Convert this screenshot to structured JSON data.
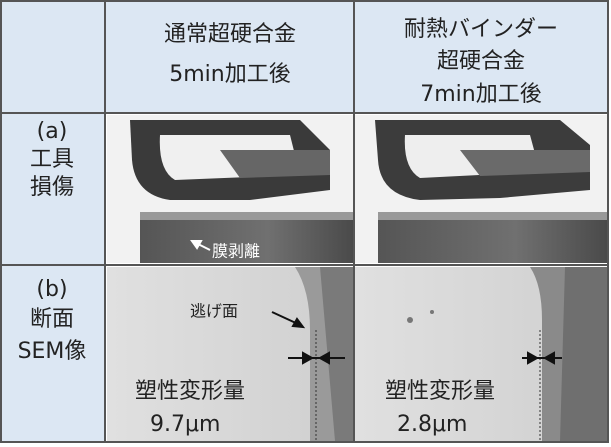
{
  "header": {
    "columns": [
      [
        "通常超硬合金",
        "5min加工後"
      ],
      [
        "耐熱バインダー",
        "超硬合金",
        "7min加工後"
      ]
    ]
  },
  "rows": [
    {
      "label": [
        "(a)",
        "工具",
        "損傷"
      ],
      "annotations": [
        "膜剥離"
      ]
    },
    {
      "label": [
        "(b)",
        "断面",
        "SEM像"
      ],
      "annotations": [
        "逃げ面"
      ],
      "cells": [
        [
          "塑性変形量",
          "9.7μm"
        ],
        [
          "塑性変形量",
          "2.8μm"
        ]
      ]
    }
  ]
}
